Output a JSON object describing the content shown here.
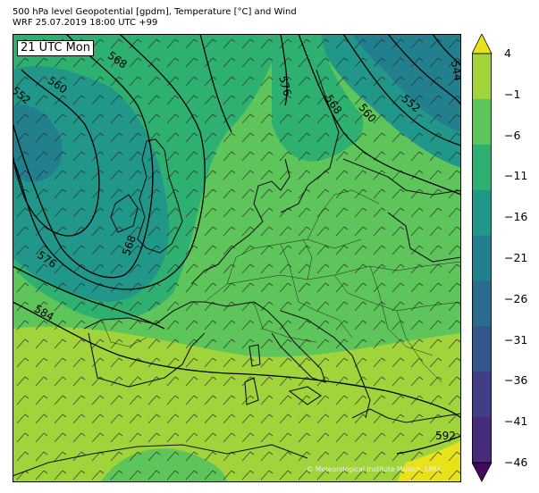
{
  "header": {
    "title_line1": "500 hPa level Geopotential [gpdm], Temperature [°C] and Wind",
    "title_line2": "WRF 25.07.2019 18:00 UTC +99"
  },
  "map": {
    "time_label": "21 UTC Mon",
    "credit": "© Meteorological Institute Munich, LMU",
    "contour_labels": [
      "568",
      "560",
      "552",
      "576",
      "568",
      "560",
      "552",
      "544",
      "576",
      "568",
      "584",
      "592"
    ]
  },
  "colorbar": {
    "tick_labels": [
      "4",
      "−1",
      "−6",
      "−11",
      "−16",
      "−21",
      "−26",
      "−31",
      "−36",
      "−41",
      "−46"
    ],
    "colors": [
      "#e8e21a",
      "#a0d43a",
      "#5ec55a",
      "#2eb070",
      "#21978a",
      "#22808e",
      "#2b6c8e",
      "#35568b",
      "#423d87",
      "#472c7a",
      "#44095e"
    ]
  }
}
